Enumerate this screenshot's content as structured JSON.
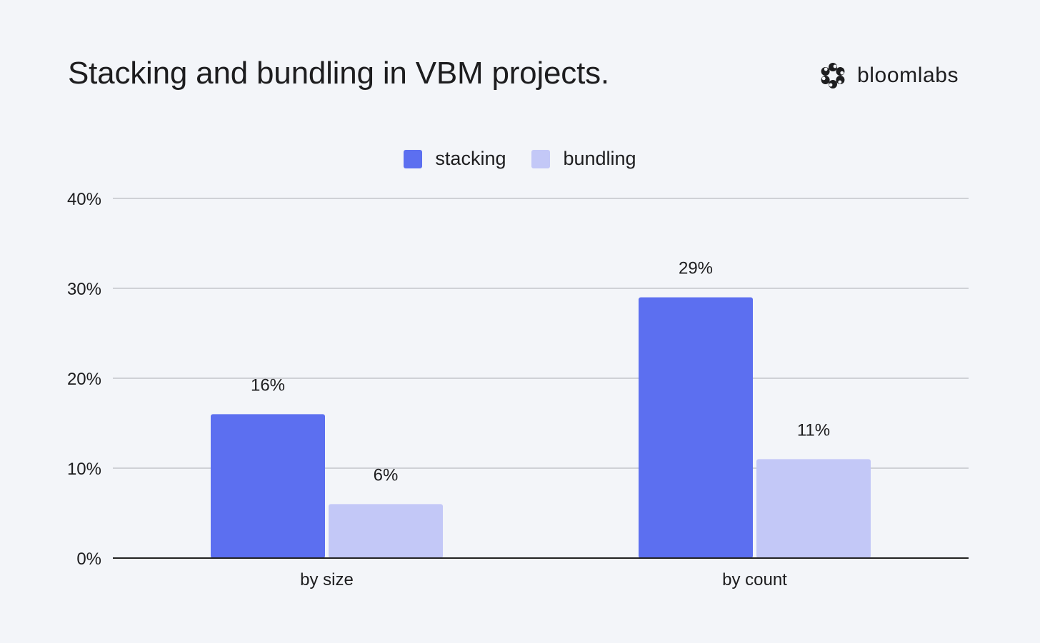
{
  "brand": {
    "name": "bloomlabs",
    "icon": "bloom-logo-icon"
  },
  "colors": {
    "stacking": "#5c6ff0",
    "bundling": "#c3c8f7",
    "grid": "#cfd1d6",
    "axis": "#222222",
    "background": "#f3f5f9"
  },
  "chart_data": {
    "type": "bar",
    "title": "Stacking and bundling in VBM projects.",
    "xlabel": "",
    "ylabel": "",
    "categories": [
      "by size",
      "by count"
    ],
    "series": [
      {
        "name": "stacking",
        "values": [
          16,
          29
        ],
        "labels": [
          "16%",
          "29%"
        ]
      },
      {
        "name": "bundling",
        "values": [
          6,
          11
        ],
        "labels": [
          "6%",
          "11%"
        ]
      }
    ],
    "ylim": [
      0,
      40
    ],
    "yticks": [
      0,
      10,
      20,
      30,
      40
    ],
    "ytick_labels": [
      "0%",
      "10%",
      "20%",
      "30%",
      "40%"
    ],
    "grid": true,
    "legend": "top-center"
  }
}
